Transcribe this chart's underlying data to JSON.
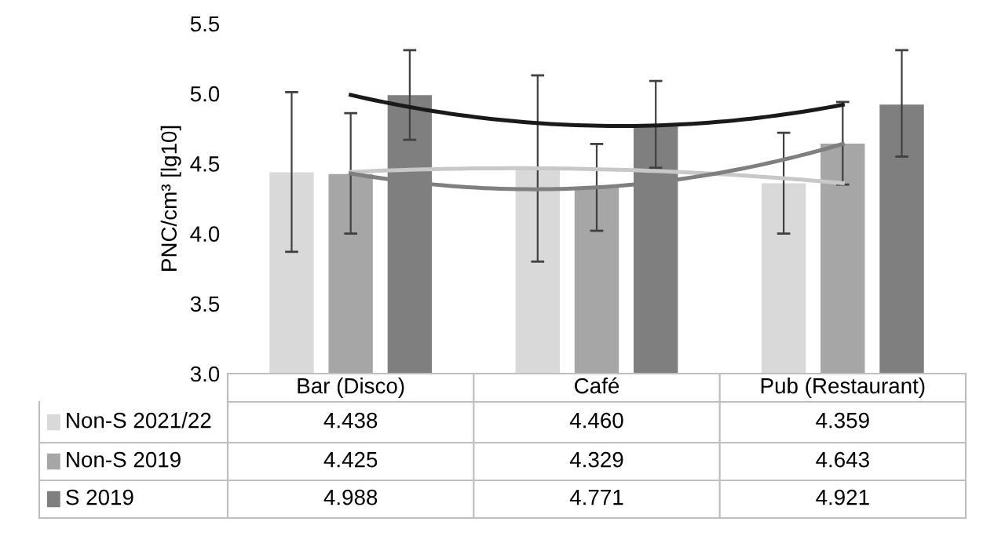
{
  "chart_data": {
    "type": "bar",
    "ylabel": "PNC/cm³ [lg10]",
    "categories": [
      "Bar (Disco)",
      "Café",
      "Pub (Restaurant)"
    ],
    "ylim": [
      3.0,
      5.5
    ],
    "yticks": [
      {
        "value": 3.0,
        "label": "3.0"
      },
      {
        "value": 3.5,
        "label": "3.5"
      },
      {
        "value": 4.0,
        "label": "4.0"
      },
      {
        "value": 4.5,
        "label": "4.5"
      },
      {
        "value": 5.0,
        "label": "5.0"
      },
      {
        "value": 5.5,
        "label": "5.5"
      }
    ],
    "grid": false,
    "legend": "bottom",
    "series": [
      {
        "name": "Non-S 2021/22",
        "color": "#d9d9d9",
        "values": [
          4.438,
          4.46,
          4.359
        ],
        "value_labels": [
          "4.438",
          "4.460",
          "4.359"
        ],
        "errors": [
          [
            3.87,
            5.01
          ],
          [
            3.8,
            5.13
          ],
          [
            4.0,
            4.72
          ]
        ]
      },
      {
        "name": "Non-S 2019",
        "color": "#a6a6a6",
        "values": [
          4.425,
          4.329,
          4.643
        ],
        "value_labels": [
          "4.425",
          "4.329",
          "4.643"
        ],
        "errors": [
          [
            4.0,
            4.86
          ],
          [
            4.02,
            4.64
          ],
          [
            4.35,
            4.94
          ]
        ]
      },
      {
        "name": "S 2019",
        "color": "#7f7f7f",
        "values": [
          4.988,
          4.771,
          4.921
        ],
        "value_labels": [
          "4.988",
          "4.771",
          "4.921"
        ],
        "errors": [
          [
            4.67,
            5.31
          ],
          [
            4.47,
            5.09
          ],
          [
            4.55,
            5.31
          ]
        ]
      },
      {
        "type": "line",
        "color": "#c8c8c8",
        "values": [
          4.44,
          4.46,
          4.36
        ]
      },
      {
        "type": "line",
        "color": "#7f7f7f",
        "values": [
          4.43,
          4.33,
          4.64
        ]
      },
      {
        "type": "line",
        "color": "#1a1a1a",
        "values": [
          4.99,
          4.77,
          4.92
        ]
      }
    ]
  }
}
